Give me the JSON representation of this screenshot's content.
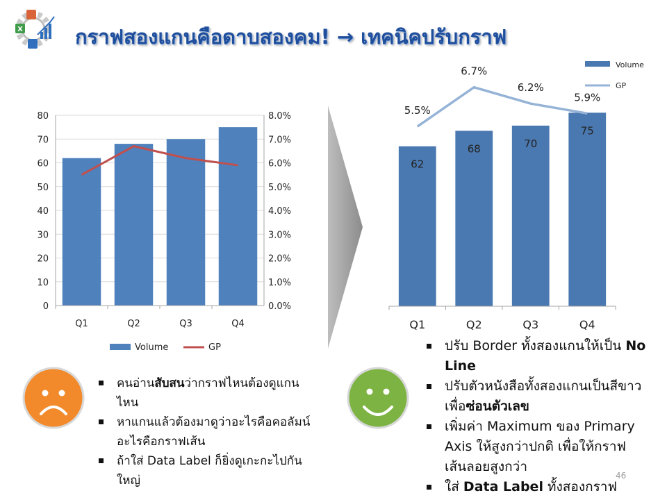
{
  "title": "กราฟสองแกนคือดาบสองคม! → เทคนิคปรับกราฟ",
  "colors": {
    "title": "#1f4e9c",
    "volume_bar": "#4f81bd",
    "gp_line_left": "#c0504d",
    "gp_line_right": "#95b3d7",
    "bar_right": "#4a78b0",
    "sad_face": "#f28a2c",
    "happy_face": "#7cb342"
  },
  "icons": {
    "logo": "gear-chart-logo-icon",
    "arrow": "chevron-right-icon",
    "sad": "sad-face-icon",
    "happy": "happy-face-icon"
  },
  "chart_data": [
    {
      "type": "bar",
      "categories": [
        "Q1",
        "Q2",
        "Q3",
        "Q4"
      ],
      "series": [
        {
          "name": "Volume",
          "type": "bar",
          "axis": "primary",
          "values": [
            62,
            68,
            70,
            75
          ]
        },
        {
          "name": "GP",
          "type": "line",
          "axis": "secondary",
          "values": [
            5.5,
            6.7,
            6.2,
            5.9
          ]
        }
      ],
      "ylim": [
        0,
        80
      ],
      "yticks": [
        "0",
        "10",
        "20",
        "30",
        "40",
        "50",
        "60",
        "70",
        "80"
      ],
      "y2lim": [
        0,
        8
      ],
      "y2ticks": [
        "0.0%",
        "1.0%",
        "2.0%",
        "3.0%",
        "4.0%",
        "5.0%",
        "6.0%",
        "7.0%",
        "8.0%"
      ],
      "grid": true,
      "legend": "bottom"
    },
    {
      "type": "bar",
      "categories": [
        "Q1",
        "Q2",
        "Q3",
        "Q4"
      ],
      "series": [
        {
          "name": "Volume",
          "type": "bar",
          "axis": "primary",
          "values": [
            62,
            68,
            70,
            75
          ],
          "labels": [
            "62",
            "68",
            "70",
            "75"
          ]
        },
        {
          "name": "GP",
          "type": "line",
          "axis": "secondary",
          "values": [
            5.5,
            6.7,
            6.2,
            5.9
          ],
          "labels": [
            "5.5%",
            "6.7%",
            "6.2%",
            "5.9%"
          ]
        }
      ],
      "ylim": [
        0,
        95
      ],
      "y2lim": [
        0,
        7.5
      ],
      "grid": false,
      "legend": "top-right"
    }
  ],
  "bad_points": [
    {
      "parts": [
        {
          "t": "คนอ่าน"
        },
        {
          "t": "สับสน",
          "b": true
        },
        {
          "t": "ว่ากราฟไหนต้องดูแกนไหน"
        }
      ]
    },
    {
      "parts": [
        {
          "t": "หาแกนแล้วต้องมาดูว่าอะไรคือคอลัมน์  อะไรคือกราฟเส้น"
        }
      ]
    },
    {
      "parts": [
        {
          "t": "ถ้าใส่  Data Label ก็ยิ่งดูเกะกะไปกันใหญ่"
        }
      ]
    }
  ],
  "good_points": [
    {
      "parts": [
        {
          "t": "ปรับ  Border ทั้งสองแกนให้เป็น  "
        },
        {
          "t": "No Line",
          "b": true
        }
      ]
    },
    {
      "parts": [
        {
          "t": "ปรับตัวหนังสือทั้งสองแกนเป็นสีขาว เพื่อ"
        },
        {
          "t": "ซ่อนตัวเลข",
          "b": true
        }
      ]
    },
    {
      "parts": [
        {
          "t": "เพิ่มค่า  Maximum ของ Primary Axis ให้สูงกว่าปกติ เพื่อให้กราฟเส้นลอยสูงกว่า"
        }
      ]
    },
    {
      "parts": [
        {
          "t": "ใส่  "
        },
        {
          "t": "Data Label",
          "b": true
        },
        {
          "t": " ทั้งสองกราฟ"
        }
      ]
    }
  ],
  "page_number": "46"
}
